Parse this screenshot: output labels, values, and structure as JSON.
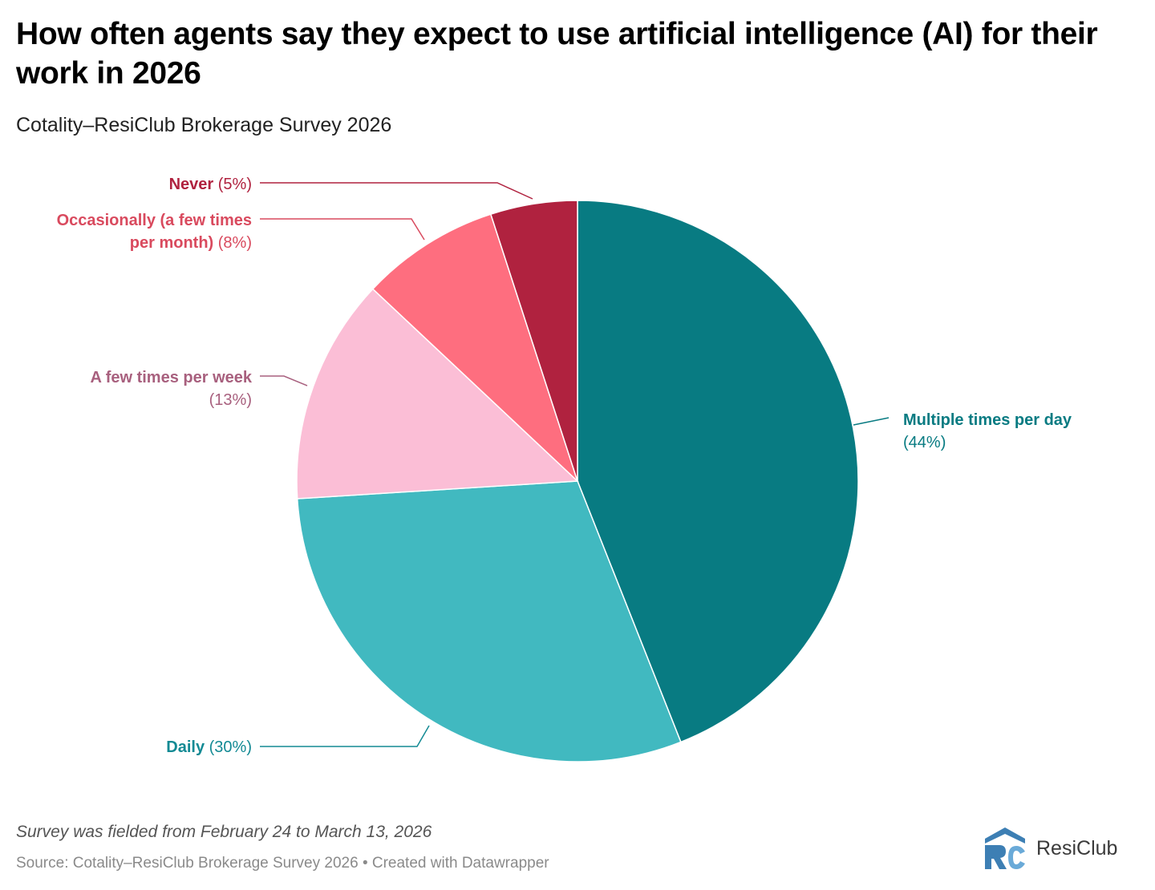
{
  "title": "How often agents say they expect to use artificial intelligence (AI) for their work in 2026",
  "subtitle": "Cotality–ResiClub Brokerage Survey 2026",
  "chart_data": {
    "type": "pie",
    "title": "How often agents say they expect to use artificial intelligence (AI) for their work in 2026",
    "subtitle": "Cotality–ResiClub Brokerage Survey 2026",
    "slices": [
      {
        "label": "Multiple times per day",
        "value": 44,
        "value_label": "(44%)",
        "color": "#087b82",
        "label_color": "#087b82"
      },
      {
        "label": "Daily",
        "value": 30,
        "value_label": "(30%)",
        "color": "#41b9c0",
        "label_color": "#138a94"
      },
      {
        "label": "A few times per week",
        "value": 13,
        "value_label": "(13%)",
        "color": "#fbbed6",
        "label_color": "#a8607e"
      },
      {
        "label": "Occasionally (a few times per month)",
        "value": 8,
        "value_label": "(8%)",
        "color": "#fe6e7f",
        "label_color": "#d94a5e"
      },
      {
        "label": "Never",
        "value": 5,
        "value_label": "(5%)",
        "color": "#b0223f",
        "label_color": "#b0223f"
      }
    ],
    "start": "top",
    "direction": "clockwise"
  },
  "footer": {
    "note": "Survey was fielded from February 24 to March 13, 2026",
    "source": "Source: Cotality–ResiClub Brokerage Survey 2026 • Created with Datawrapper"
  },
  "logo": {
    "text": "ResiClub",
    "colors": {
      "dark": "#3d7fb4",
      "light": "#6aaad8"
    }
  }
}
